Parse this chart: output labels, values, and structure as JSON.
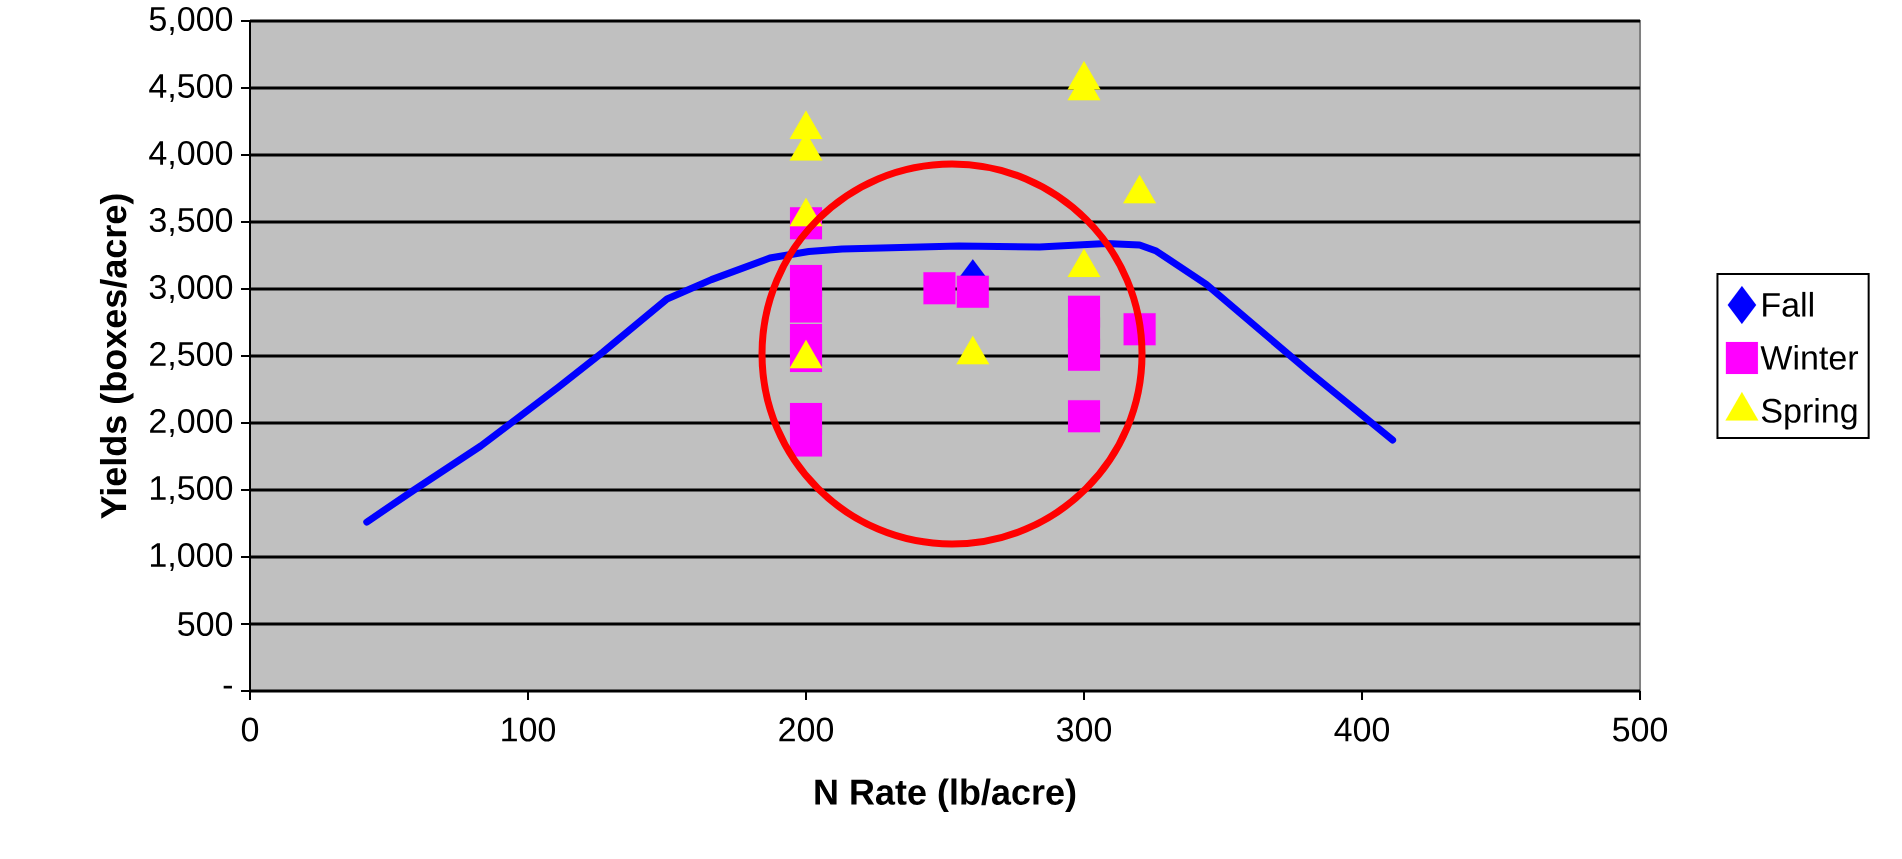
{
  "chart_data": {
    "type": "scatter",
    "xlabel": "N Rate (lb/acre)",
    "ylabel": "Yields (boxes/acre)",
    "xlim": [
      0,
      500
    ],
    "xticks": [
      0,
      100,
      200,
      300,
      400,
      500
    ],
    "ylim": [
      0,
      5000
    ],
    "yticks": [
      {
        "value": 0,
        "label": "-"
      },
      {
        "value": 500,
        "label": "500"
      },
      {
        "value": 1000,
        "label": "1,000"
      },
      {
        "value": 1500,
        "label": "1,500"
      },
      {
        "value": 2000,
        "label": "2,000"
      },
      {
        "value": 2500,
        "label": "2,500"
      },
      {
        "value": 3000,
        "label": "3,000"
      },
      {
        "value": 3500,
        "label": "3,500"
      },
      {
        "value": 4000,
        "label": "4,000"
      },
      {
        "value": 4500,
        "label": "4,500"
      },
      {
        "value": 5000,
        "label": "5,000"
      }
    ],
    "grid": "y",
    "legend": "right",
    "series": [
      {
        "type": "line",
        "color": "#0000ff",
        "marker": "none",
        "line_style": "solid",
        "x": [
          42,
          59,
          83,
          111,
          127,
          150,
          166,
          187,
          201,
          213,
          255,
          284,
          308,
          320,
          326,
          344,
          381,
          411
        ],
        "values": [
          1261,
          1500,
          1828,
          2269,
          2530,
          2925,
          3070,
          3231,
          3280,
          3299,
          3321,
          3313,
          3340,
          3328,
          3283,
          3035,
          2381,
          1873
        ]
      },
      {
        "name": "Fall",
        "color": "#0000ff",
        "marker": "diamond",
        "x": [
          260
        ],
        "values": [
          3080
        ]
      },
      {
        "name": "Winter",
        "color": "#ff00ff",
        "marker": "square",
        "x": [
          200,
          200,
          200,
          200,
          200,
          200,
          200,
          248,
          260,
          300,
          300,
          300,
          300,
          320
        ],
        "values": [
          3490,
          3060,
          2870,
          2620,
          2500,
          2030,
          1870,
          3005,
          2980,
          2830,
          2670,
          2510,
          2050,
          2700
        ]
      },
      {
        "name": "Spring",
        "color": "#ffff00",
        "marker": "triangle",
        "x": [
          200,
          200,
          200,
          200,
          260,
          300,
          300,
          300,
          320
        ],
        "values": [
          4190,
          4030,
          3540,
          2480,
          2510,
          4560,
          4480,
          3160,
          3710
        ]
      }
    ]
  }
}
